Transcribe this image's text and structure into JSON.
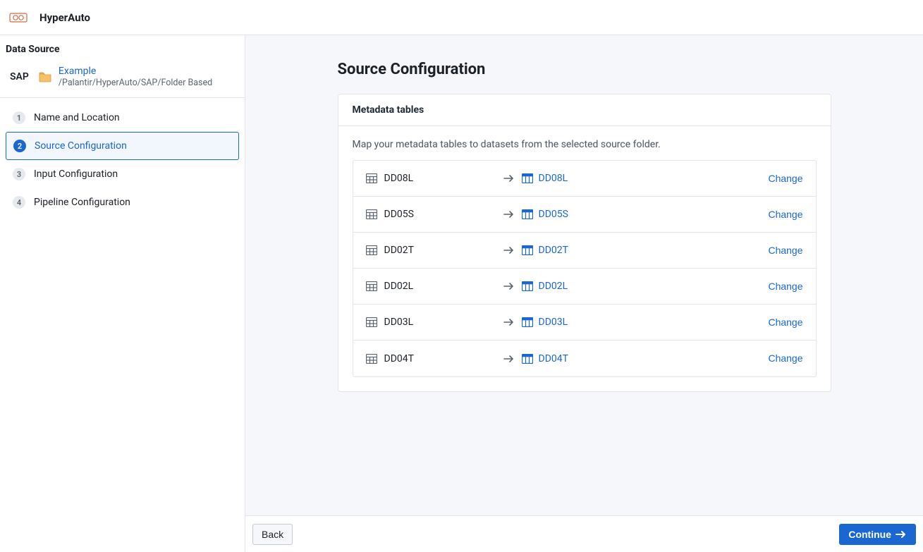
{
  "header": {
    "app_title": "HyperAuto"
  },
  "sidebar": {
    "data_source_heading": "Data Source",
    "source_type": "SAP",
    "folder_name": "Example",
    "folder_path": "/Palantir/HyperAuto/SAP/Folder Based",
    "steps": [
      {
        "num": "1",
        "label": "Name and Location",
        "active": false
      },
      {
        "num": "2",
        "label": "Source Configuration",
        "active": true
      },
      {
        "num": "3",
        "label": "Input Configuration",
        "active": false
      },
      {
        "num": "4",
        "label": "Pipeline Configuration",
        "active": false
      }
    ]
  },
  "main": {
    "title": "Source Configuration",
    "card_title": "Metadata tables",
    "card_desc": "Map your metadata tables to datasets from the selected source folder.",
    "change_label": "Change",
    "mappings": [
      {
        "src": "DD08L",
        "dst": "DD08L"
      },
      {
        "src": "DD05S",
        "dst": "DD05S"
      },
      {
        "src": "DD02T",
        "dst": "DD02T"
      },
      {
        "src": "DD02L",
        "dst": "DD02L"
      },
      {
        "src": "DD03L",
        "dst": "DD03L"
      },
      {
        "src": "DD04T",
        "dst": "DD04T"
      }
    ]
  },
  "footer": {
    "back_label": "Back",
    "continue_label": "Continue"
  },
  "colors": {
    "accent": "#1a67d2",
    "border": "#e1e5ea",
    "bg_subtle": "#f5f7fa",
    "text": "#1c2127",
    "text_muted": "#5c6470",
    "folder": "#f0a33a",
    "dataset_icon": "#1a67d2"
  }
}
